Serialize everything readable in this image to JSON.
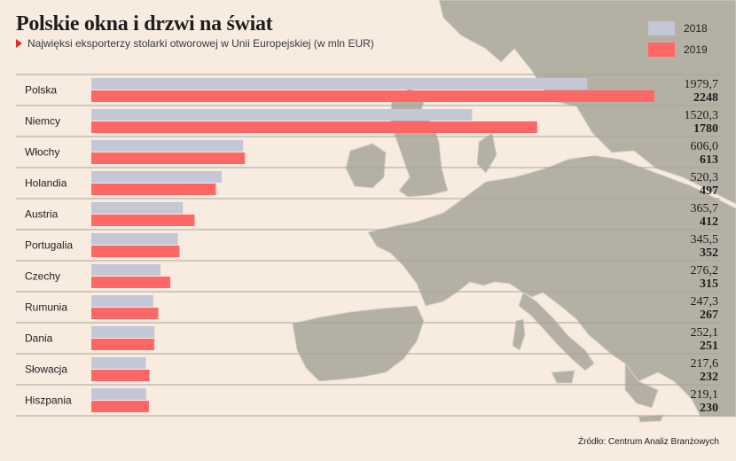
{
  "header": {
    "title": "Polskie okna i drzwi na świat",
    "subtitle": "Najwięksi eksporterzy stolarki otworowej w Unii Europejskiej (w mln EUR)"
  },
  "legend": {
    "items": [
      {
        "label": "2018",
        "color": "#c4c8d6"
      },
      {
        "label": "2019",
        "color": "#ff6766"
      }
    ]
  },
  "source": "Źródło: Centrum Analiz Branżowych",
  "chart_data": {
    "type": "bar",
    "orientation": "horizontal",
    "title": "Polskie okna i drzwi na świat",
    "subtitle": "Najwięksi eksporterzy stolarki otworowej w Unii Europejskiej (w mln EUR)",
    "categories": [
      "Polska",
      "Niemcy",
      "Włochy",
      "Holandia",
      "Austria",
      "Portugalia",
      "Czechy",
      "Rumunia",
      "Dania",
      "Słowacja",
      "Hiszpania"
    ],
    "series": [
      {
        "name": "2018",
        "color": "#c4c8d6",
        "values": [
          1979.7,
          1520.3,
          606.0,
          520.3,
          365.7,
          345.5,
          276.2,
          247.3,
          252.1,
          217.6,
          219.1
        ],
        "labels": [
          "1979,7",
          "1520,3",
          "606,0",
          "520,3",
          "365,7",
          "345,5",
          "276,2",
          "247,3",
          "252,1",
          "217,6",
          "219,1"
        ]
      },
      {
        "name": "2019",
        "color": "#ff6766",
        "values": [
          2248,
          1780,
          613,
          497,
          412,
          352,
          315,
          267,
          251,
          232,
          230
        ],
        "labels": [
          "2248",
          "1780",
          "613",
          "497",
          "412",
          "352",
          "315",
          "267",
          "251",
          "232",
          "230"
        ]
      }
    ],
    "xlim": [
      0,
      2248
    ],
    "grid": false,
    "legend_position": "top-right"
  }
}
